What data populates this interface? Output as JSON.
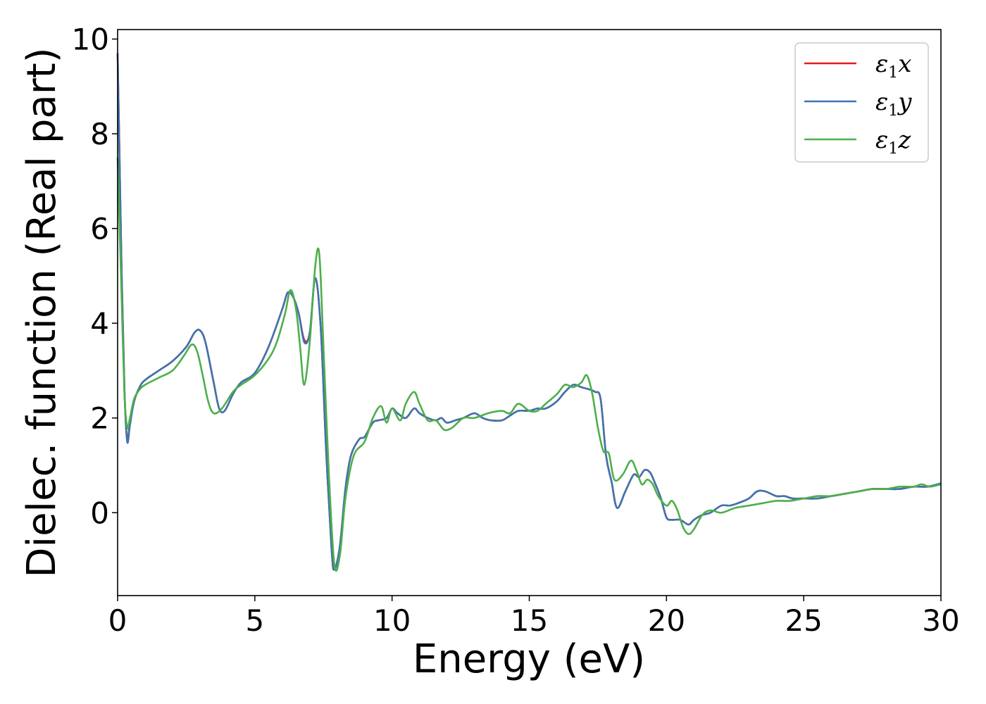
{
  "chart_data": {
    "type": "line",
    "xlabel": "Energy (eV)",
    "ylabel": "Dielec. function (Real part)",
    "xlim": [
      0,
      30
    ],
    "ylim": [
      -1.75,
      10.2
    ],
    "xticks": [
      0,
      5,
      10,
      15,
      20,
      25,
      30
    ],
    "yticks": [
      0,
      2,
      4,
      6,
      8,
      10
    ],
    "grid": false,
    "legend_position": "top-right",
    "series": [
      {
        "name": "ε1x",
        "legend_label": {
          "base": "ε",
          "sub": "1",
          "tail": "x"
        },
        "color": "#e41a1c",
        "x": [
          0.0,
          0.05,
          0.15,
          0.25,
          0.35,
          0.45,
          0.6,
          0.8,
          1.0,
          1.5,
          2.0,
          2.5,
          2.8,
          3.0,
          3.2,
          3.5,
          3.7,
          3.9,
          4.2,
          4.5,
          5.0,
          5.5,
          6.0,
          6.2,
          6.4,
          6.6,
          6.8,
          7.0,
          7.2,
          7.4,
          7.6,
          7.8,
          7.9,
          8.1,
          8.3,
          8.5,
          8.8,
          9.0,
          9.3,
          9.5,
          9.8,
          10.0,
          10.2,
          10.5,
          10.8,
          11.0,
          11.3,
          11.6,
          11.8,
          12.0,
          12.3,
          12.6,
          13.0,
          13.3,
          13.6,
          14.0,
          14.3,
          14.6,
          15.0,
          15.3,
          15.6,
          16.0,
          16.3,
          16.6,
          16.9,
          17.2,
          17.4,
          17.6,
          17.8,
          18.0,
          18.2,
          18.5,
          18.8,
          19.0,
          19.2,
          19.4,
          19.6,
          19.8,
          20.0,
          20.2,
          20.5,
          20.8,
          21.0,
          21.3,
          21.6,
          22.0,
          22.3,
          22.6,
          23.0,
          23.3,
          23.6,
          24.0,
          24.3,
          24.6,
          25.0,
          25.5,
          26.0,
          26.5,
          27.0,
          27.5,
          28.0,
          28.5,
          29.0,
          29.5,
          30.0
        ],
        "y": [
          9.7,
          8.2,
          5.0,
          2.6,
          1.55,
          1.9,
          2.35,
          2.65,
          2.8,
          3.0,
          3.2,
          3.5,
          3.8,
          3.85,
          3.6,
          2.75,
          2.2,
          2.15,
          2.5,
          2.75,
          2.95,
          3.5,
          4.3,
          4.65,
          4.55,
          4.2,
          3.65,
          3.8,
          4.95,
          3.9,
          1.3,
          -0.8,
          -1.2,
          -0.7,
          0.5,
          1.2,
          1.55,
          1.6,
          1.9,
          1.95,
          2.0,
          2.2,
          2.1,
          2.0,
          2.2,
          2.1,
          2.0,
          1.95,
          2.0,
          1.9,
          1.95,
          2.0,
          2.1,
          2.0,
          1.95,
          1.95,
          2.05,
          2.15,
          2.15,
          2.2,
          2.2,
          2.35,
          2.55,
          2.7,
          2.65,
          2.6,
          2.55,
          2.4,
          1.2,
          0.65,
          0.1,
          0.45,
          0.8,
          0.75,
          0.9,
          0.85,
          0.6,
          0.3,
          -0.1,
          -0.15,
          -0.15,
          -0.25,
          -0.15,
          -0.05,
          0.0,
          0.15,
          0.15,
          0.2,
          0.3,
          0.45,
          0.45,
          0.35,
          0.35,
          0.3,
          0.3,
          0.3,
          0.35,
          0.4,
          0.45,
          0.5,
          0.5,
          0.5,
          0.55,
          0.55,
          0.6
        ]
      },
      {
        "name": "ε1y",
        "legend_label": {
          "base": "ε",
          "sub": "1",
          "tail": "y"
        },
        "color": "#3e74b0",
        "x": [
          0.0,
          0.05,
          0.15,
          0.25,
          0.35,
          0.45,
          0.6,
          0.8,
          1.0,
          1.5,
          2.0,
          2.5,
          2.8,
          3.0,
          3.2,
          3.5,
          3.7,
          3.9,
          4.2,
          4.5,
          5.0,
          5.5,
          6.0,
          6.2,
          6.4,
          6.6,
          6.8,
          7.0,
          7.2,
          7.4,
          7.6,
          7.8,
          7.9,
          8.1,
          8.3,
          8.5,
          8.8,
          9.0,
          9.3,
          9.5,
          9.8,
          10.0,
          10.2,
          10.5,
          10.8,
          11.0,
          11.3,
          11.6,
          11.8,
          12.0,
          12.3,
          12.6,
          13.0,
          13.3,
          13.6,
          14.0,
          14.3,
          14.6,
          15.0,
          15.3,
          15.6,
          16.0,
          16.3,
          16.6,
          16.9,
          17.2,
          17.4,
          17.6,
          17.8,
          18.0,
          18.2,
          18.5,
          18.8,
          19.0,
          19.2,
          19.4,
          19.6,
          19.8,
          20.0,
          20.2,
          20.5,
          20.8,
          21.0,
          21.3,
          21.6,
          22.0,
          22.3,
          22.6,
          23.0,
          23.3,
          23.6,
          24.0,
          24.3,
          24.6,
          25.0,
          25.5,
          26.0,
          26.5,
          27.0,
          27.5,
          28.0,
          28.5,
          29.0,
          29.5,
          30.0
        ],
        "y": [
          9.7,
          8.2,
          5.0,
          2.6,
          1.5,
          1.85,
          2.35,
          2.65,
          2.8,
          3.0,
          3.2,
          3.5,
          3.8,
          3.85,
          3.6,
          2.75,
          2.2,
          2.15,
          2.5,
          2.75,
          2.95,
          3.5,
          4.3,
          4.65,
          4.55,
          4.2,
          3.6,
          3.8,
          4.95,
          3.9,
          1.3,
          -0.8,
          -1.2,
          -0.7,
          0.5,
          1.2,
          1.55,
          1.6,
          1.9,
          1.95,
          2.0,
          2.2,
          2.1,
          2.0,
          2.2,
          2.1,
          2.0,
          1.95,
          2.0,
          1.9,
          1.95,
          2.0,
          2.1,
          2.0,
          1.95,
          1.95,
          2.05,
          2.15,
          2.15,
          2.2,
          2.2,
          2.35,
          2.55,
          2.7,
          2.65,
          2.6,
          2.55,
          2.4,
          1.2,
          0.65,
          0.1,
          0.45,
          0.8,
          0.75,
          0.9,
          0.85,
          0.6,
          0.3,
          -0.1,
          -0.15,
          -0.15,
          -0.25,
          -0.15,
          -0.05,
          0.0,
          0.15,
          0.15,
          0.2,
          0.3,
          0.45,
          0.45,
          0.35,
          0.35,
          0.3,
          0.3,
          0.3,
          0.35,
          0.4,
          0.45,
          0.5,
          0.5,
          0.5,
          0.55,
          0.55,
          0.62
        ]
      },
      {
        "name": "ε1z",
        "legend_label": {
          "base": "ε",
          "sub": "1",
          "tail": "z"
        },
        "color": "#4daf4a",
        "x": [
          0.0,
          0.05,
          0.15,
          0.25,
          0.35,
          0.45,
          0.6,
          0.8,
          1.0,
          1.5,
          2.0,
          2.4,
          2.7,
          2.9,
          3.1,
          3.3,
          3.5,
          3.8,
          4.2,
          4.5,
          5.0,
          5.5,
          5.8,
          6.1,
          6.3,
          6.5,
          6.65,
          6.8,
          7.0,
          7.2,
          7.35,
          7.5,
          7.7,
          7.9,
          8.1,
          8.3,
          8.6,
          9.0,
          9.3,
          9.6,
          9.8,
          10.0,
          10.3,
          10.5,
          10.8,
          11.0,
          11.3,
          11.6,
          11.9,
          12.2,
          12.6,
          13.0,
          13.5,
          14.0,
          14.3,
          14.6,
          15.0,
          15.3,
          15.6,
          16.0,
          16.3,
          16.6,
          16.9,
          17.1,
          17.3,
          17.5,
          17.7,
          17.9,
          18.1,
          18.4,
          18.7,
          18.9,
          19.1,
          19.3,
          19.5,
          19.7,
          20.0,
          20.2,
          20.4,
          20.6,
          20.8,
          21.0,
          21.3,
          21.6,
          22.0,
          22.5,
          23.0,
          23.5,
          24.0,
          24.5,
          25.0,
          25.5,
          26.0,
          26.5,
          27.0,
          27.5,
          28.0,
          28.5,
          29.0,
          29.3,
          29.6,
          30.0
        ],
        "y": [
          7.5,
          6.5,
          4.5,
          2.5,
          1.8,
          2.0,
          2.4,
          2.6,
          2.7,
          2.85,
          3.0,
          3.3,
          3.55,
          3.4,
          2.9,
          2.35,
          2.1,
          2.2,
          2.55,
          2.7,
          2.9,
          3.25,
          3.6,
          4.2,
          4.7,
          4.3,
          3.5,
          2.7,
          3.6,
          5.2,
          5.45,
          3.5,
          0.8,
          -1.1,
          -0.9,
          0.3,
          1.2,
          1.5,
          2.0,
          2.25,
          1.9,
          2.2,
          1.95,
          2.3,
          2.55,
          2.3,
          1.95,
          1.95,
          1.75,
          1.8,
          2.0,
          2.0,
          2.1,
          2.15,
          2.1,
          2.3,
          2.15,
          2.15,
          2.3,
          2.5,
          2.7,
          2.65,
          2.75,
          2.9,
          2.5,
          1.8,
          1.3,
          1.25,
          0.7,
          0.8,
          1.1,
          0.9,
          0.6,
          0.7,
          0.6,
          0.35,
          0.15,
          0.25,
          0.05,
          -0.3,
          -0.45,
          -0.35,
          -0.05,
          0.05,
          0.0,
          0.1,
          0.15,
          0.2,
          0.25,
          0.25,
          0.3,
          0.35,
          0.35,
          0.4,
          0.45,
          0.5,
          0.5,
          0.55,
          0.55,
          0.6,
          0.55,
          0.6
        ]
      }
    ]
  }
}
